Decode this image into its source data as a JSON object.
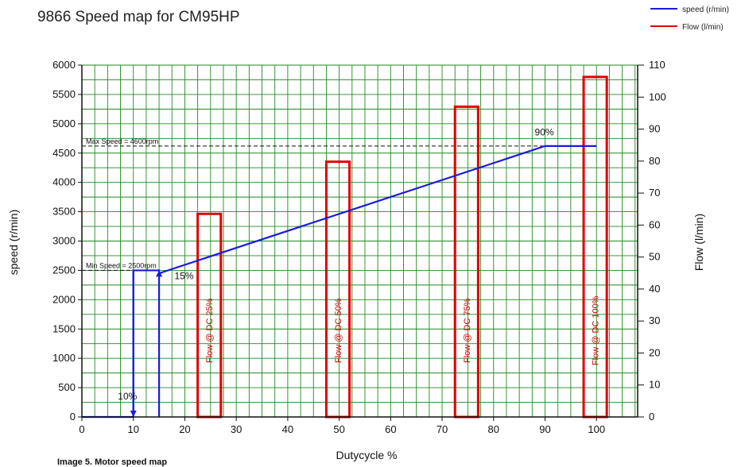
{
  "chart_data": {
    "type": "line",
    "title": "9866 Speed map for CM95HP",
    "xlabel": "Dutycycle %",
    "ylabel_left": "speed (r/min)",
    "ylabel_right": "Flow (l/min)",
    "xlim": [
      0,
      108
    ],
    "ylim_left": [
      0,
      6000
    ],
    "ylim_right": [
      0,
      110
    ],
    "x_ticks": [
      0,
      10,
      20,
      30,
      40,
      50,
      60,
      70,
      80,
      90,
      100
    ],
    "y_left_ticks": [
      0,
      500,
      1000,
      1500,
      2000,
      2500,
      3000,
      3500,
      4000,
      4500,
      5000,
      5500,
      6000
    ],
    "y_right_ticks": [
      0,
      10,
      20,
      30,
      40,
      50,
      60,
      70,
      80,
      90,
      100,
      110
    ],
    "grid": true,
    "legend_position": "top-right",
    "series": [
      {
        "name": "speed (r/min)",
        "axis": "left",
        "color": "#1a1adc",
        "x": [
          0,
          10,
          10,
          15,
          15,
          90,
          100
        ],
        "y": [
          0,
          0,
          2500,
          2500,
          2450,
          4620,
          4620
        ]
      },
      {
        "name": "Flow (l/min)",
        "axis": "right",
        "color": "#e00000",
        "bars": [
          {
            "x_start": 22.5,
            "x_end": 27,
            "value": 63.5,
            "label": "Flow @ DC 25%"
          },
          {
            "x_start": 47.5,
            "x_end": 52,
            "value": 79.8,
            "label": "Flow @ DC 50%"
          },
          {
            "x_start": 72.5,
            "x_end": 77,
            "value": 97.0,
            "label": "Flow @ DC 75%"
          },
          {
            "x_start": 97.5,
            "x_end": 102,
            "value": 106.3,
            "label": "Flow @ DC 100%"
          }
        ]
      }
    ],
    "reference_lines": [
      {
        "axis": "left",
        "value": 4620,
        "label": "Max Speed = 4600rpm",
        "style": "dashed"
      },
      {
        "axis": "left",
        "value": 2500,
        "label": "Min Speed = 2500rpm",
        "style": "dashed"
      }
    ],
    "annotations": [
      {
        "text": "10%",
        "x": 7,
        "y": 300
      },
      {
        "text": "15%",
        "x": 18,
        "y": 2350
      },
      {
        "text": "90%",
        "x": 88,
        "y": 4800
      }
    ],
    "arrows": [
      {
        "x": 10,
        "from": 2500,
        "to": 0
      },
      {
        "x": 15,
        "from": 0,
        "to": 2500
      }
    ]
  },
  "caption": "Image 5. Motor speed map"
}
